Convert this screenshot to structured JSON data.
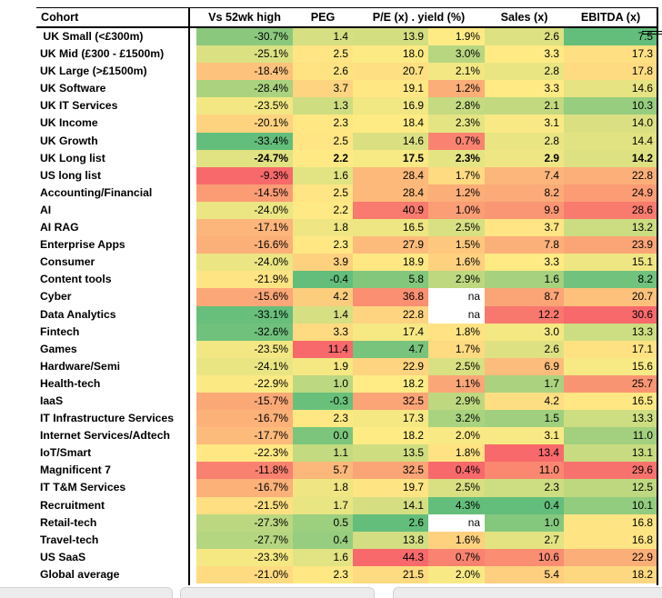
{
  "colors": {
    "heat_red": "#F8696B",
    "heat_yellow": "#FFEB84",
    "heat_green": "#63BE7B",
    "na_bg": "#FFFFFF",
    "border": "#000000",
    "bottom_bar": "#ECECEC"
  },
  "header": {
    "labels": [
      "Cohort",
      "",
      "Vs 52wk high",
      "PEG",
      "P/E (x) . yield (%)",
      "Sales (x)",
      "EBITDA (x)"
    ]
  },
  "chart_data": {
    "type": "heatmap",
    "title": "",
    "legend": "none",
    "na_text": "na",
    "columns": [
      "Vs 52wk high",
      "PEG",
      "P/E (x)",
      "yield (%)",
      "Sales (x)",
      "EBITDA (x)"
    ],
    "column_color_direction": [
      "low_green",
      "low_green",
      "low_green",
      "high_green",
      "low_green",
      "low_green"
    ],
    "color_scale": {
      "low": "green",
      "mid": "yellow (median)",
      "high": "red"
    },
    "rows": [
      {
        "cohort": " UK Small (<£300m)",
        "values": [
          "-30.7%",
          "1.4",
          "13.9",
          "1.9%",
          "2.6",
          "7.5"
        ]
      },
      {
        "cohort": "UK Mid (£300 - £1500m)",
        "values": [
          "-25.1%",
          "2.5",
          "18.0",
          "3.0%",
          "3.3",
          "17.3"
        ]
      },
      {
        "cohort": "UK Large (>£1500m)",
        "values": [
          "-18.4%",
          "2.6",
          "20.7",
          "2.1%",
          "2.8",
          "17.8"
        ]
      },
      {
        "cohort": "UK Software",
        "values": [
          "-28.4%",
          "3.7",
          "19.1",
          "1.2%",
          "3.3",
          "14.6"
        ]
      },
      {
        "cohort": "UK IT Services",
        "values": [
          "-23.5%",
          "1.3",
          "16.9",
          "2.8%",
          "2.1",
          "10.3"
        ]
      },
      {
        "cohort": "UK Income",
        "values": [
          "-20.1%",
          "2.3",
          "18.4",
          "2.3%",
          "3.1",
          "14.0"
        ]
      },
      {
        "cohort": "UK Growth",
        "values": [
          "-33.4%",
          "2.5",
          "14.6",
          "0.7%",
          "2.8",
          "14.4"
        ]
      },
      {
        "cohort": "UK Long list",
        "bold": true,
        "values": [
          "-24.7%",
          "2.2",
          "17.5",
          "2.3%",
          "2.9",
          "14.2"
        ]
      },
      {
        "cohort": "US long list",
        "values": [
          "-9.3%",
          "1.6",
          "28.4",
          "1.7%",
          "7.4",
          "22.8"
        ]
      },
      {
        "cohort": "Accounting/Financial",
        "values": [
          "-14.5%",
          "2.5",
          "28.4",
          "1.2%",
          "8.2",
          "24.9"
        ]
      },
      {
        "cohort": "AI",
        "values": [
          "-24.0%",
          "2.2",
          "40.9",
          "1.0%",
          "9.9",
          "28.6"
        ]
      },
      {
        "cohort": "AI RAG",
        "values": [
          "-17.1%",
          "1.8",
          "16.5",
          "2.5%",
          "3.7",
          "13.2"
        ]
      },
      {
        "cohort": "Enterprise Apps",
        "values": [
          "-16.6%",
          "2.3",
          "27.9",
          "1.5%",
          "7.8",
          "23.9"
        ]
      },
      {
        "cohort": "Consumer",
        "values": [
          "-24.0%",
          "3.9",
          "18.9",
          "1.6%",
          "3.3",
          "15.1"
        ]
      },
      {
        "cohort": "Content tools",
        "values": [
          "-21.9%",
          "-0.4",
          "5.8",
          "2.9%",
          "1.6",
          "8.2"
        ]
      },
      {
        "cohort": "Cyber",
        "values": [
          "-15.6%",
          "4.2",
          "36.8",
          "na",
          "8.7",
          "20.7"
        ]
      },
      {
        "cohort": "Data Analytics",
        "values": [
          "-33.1%",
          "1.4",
          "22.8",
          "na",
          "12.2",
          "30.6"
        ]
      },
      {
        "cohort": "Fintech",
        "values": [
          "-32.6%",
          "3.3",
          "17.4",
          "1.8%",
          "3.0",
          "13.3"
        ]
      },
      {
        "cohort": "Games",
        "values": [
          "-23.5%",
          "11.4",
          "4.7",
          "1.7%",
          "2.6",
          "17.1"
        ]
      },
      {
        "cohort": "Hardware/Semi",
        "values": [
          "-24.1%",
          "1.9",
          "22.9",
          "2.5%",
          "6.9",
          "15.6"
        ]
      },
      {
        "cohort": "Health-tech",
        "values": [
          "-22.9%",
          "1.0",
          "18.2",
          "1.1%",
          "1.7",
          "25.7"
        ]
      },
      {
        "cohort": "IaaS",
        "values": [
          "-15.7%",
          "-0.3",
          "32.5",
          "2.9%",
          "4.2",
          "16.5"
        ]
      },
      {
        "cohort": "IT Infrastructure Services",
        "values": [
          "-16.7%",
          "2.3",
          "17.3",
          "3.2%",
          "1.5",
          "13.3"
        ]
      },
      {
        "cohort": "Internet Services/Adtech",
        "values": [
          "-17.7%",
          "0.0",
          "18.2",
          "2.0%",
          "3.1",
          "11.0"
        ]
      },
      {
        "cohort": "IoT/Smart",
        "values": [
          "-22.3%",
          "1.1",
          "13.5",
          "1.8%",
          "13.4",
          "13.1"
        ]
      },
      {
        "cohort": "Magnificent 7",
        "values": [
          "-11.8%",
          "5.7",
          "32.5",
          "0.4%",
          "11.0",
          "29.6"
        ]
      },
      {
        "cohort": "IT T&M Services",
        "values": [
          "-16.7%",
          "1.8",
          "19.7",
          "2.5%",
          "2.3",
          "12.5"
        ]
      },
      {
        "cohort": "Recruitment",
        "values": [
          "-21.5%",
          "1.7",
          "14.1",
          "4.3%",
          "0.4",
          "10.1"
        ]
      },
      {
        "cohort": "Retail-tech",
        "values": [
          "-27.3%",
          "0.5",
          "2.6",
          "na",
          "1.0",
          "16.8"
        ]
      },
      {
        "cohort": "Travel-tech",
        "values": [
          "-27.7%",
          "0.4",
          "13.8",
          "1.6%",
          "2.7",
          "16.8"
        ]
      },
      {
        "cohort": "US SaaS",
        "values": [
          "-23.3%",
          "1.6",
          "44.3",
          "0.7%",
          "10.6",
          "22.9"
        ]
      },
      {
        "cohort": "Global average",
        "values": [
          "-21.0%",
          "2.3",
          "21.5",
          "2.0%",
          "5.4",
          "18.2"
        ]
      }
    ]
  }
}
